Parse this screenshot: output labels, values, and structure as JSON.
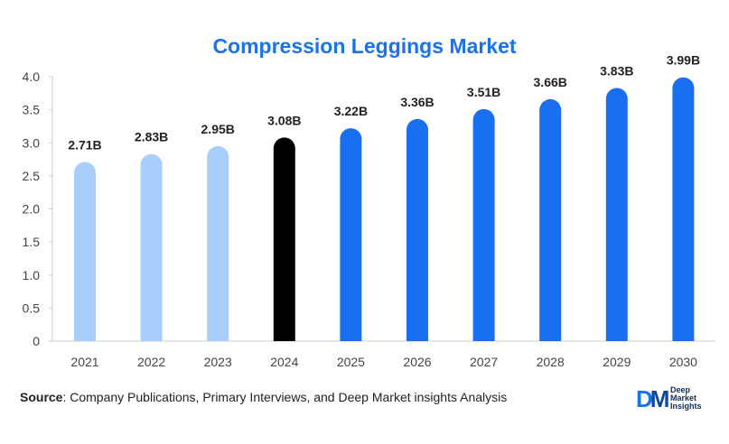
{
  "chart_data": {
    "type": "bar",
    "title": "Compression Leggings Market",
    "categories": [
      "2021",
      "2022",
      "2023",
      "2024",
      "2025",
      "2026",
      "2027",
      "2028",
      "2029",
      "2030"
    ],
    "values": [
      2.71,
      2.83,
      2.95,
      3.08,
      3.22,
      3.36,
      3.51,
      3.66,
      3.83,
      3.99
    ],
    "data_labels": [
      "2.71B",
      "2.83B",
      "2.95B",
      "3.08B",
      "3.22B",
      "3.36B",
      "3.51B",
      "3.66B",
      "3.83B",
      "3.99B"
    ],
    "bar_colors": [
      "#a8cffb",
      "#a8cffb",
      "#a8cffb",
      "#000000",
      "#1a6ff0",
      "#1a6ff0",
      "#1a6ff0",
      "#1a6ff0",
      "#1a6ff0",
      "#1a6ff0"
    ],
    "y_ticks": [
      "0",
      "0.5",
      "1.0",
      "1.5",
      "2.0",
      "2.5",
      "3.0",
      "3.5",
      "4.0"
    ],
    "ylim": [
      0,
      4.0
    ],
    "xlabel": "",
    "ylabel": "",
    "grid": false,
    "legend": "none"
  },
  "footer": {
    "source_label": "Source",
    "source_text": ": Company Publications, Primary Interviews, and Deep Market insights Analysis"
  },
  "logo": {
    "mark_d": "D",
    "mark_m": "M",
    "line1": "Deep",
    "line2": "Market",
    "line3": "Insights"
  }
}
